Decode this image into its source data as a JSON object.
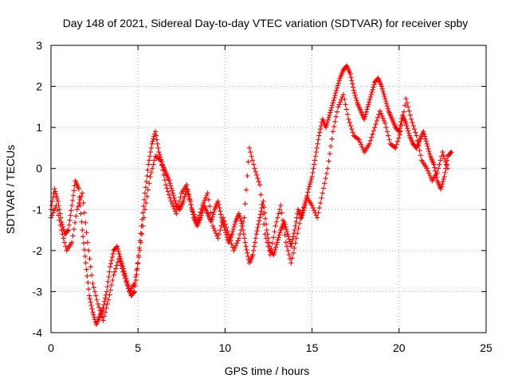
{
  "chart_data": {
    "type": "scatter",
    "title": "Day 148 of 2021, Sidereal Day-to-day VTEC variation (SDTVAR) for receiver spby",
    "xlabel": "GPS time / hours",
    "ylabel": "SDTVAR / TECUs",
    "xlim": [
      0,
      25
    ],
    "ylim": [
      -4,
      3
    ],
    "xticks": [
      "0",
      "5",
      "10",
      "15",
      "20",
      "25"
    ],
    "yticks": [
      "-4",
      "-3",
      "-2",
      "-1",
      "0",
      "1",
      "2",
      "3"
    ],
    "grid": true,
    "marker": "plus",
    "color": "#ff0000",
    "series": [
      {
        "name": "",
        "x": [
          0.0,
          0.2,
          0.4,
          0.6,
          0.8,
          1.0,
          1.2,
          1.4,
          1.6,
          1.8,
          2.0,
          2.2,
          2.4,
          2.6,
          2.8,
          3.0,
          3.2,
          3.4,
          3.6,
          3.8,
          4.0,
          4.2,
          4.4,
          4.6,
          4.8,
          5.0,
          5.2,
          5.4,
          5.6,
          5.8,
          6.0,
          6.2,
          6.4,
          6.6,
          6.8,
          7.0,
          7.2,
          7.4,
          7.6,
          7.8,
          8.0,
          8.2,
          8.4,
          8.6,
          8.8,
          9.0,
          9.2,
          9.4,
          9.6,
          9.8,
          10.0,
          10.2,
          10.4,
          10.6,
          10.8,
          11.0,
          11.2,
          11.4,
          11.6,
          11.8,
          12.0,
          12.2,
          12.4,
          12.6,
          12.8,
          13.0,
          13.2,
          13.4,
          13.6,
          13.8,
          14.0,
          14.2,
          14.4,
          14.6,
          14.8,
          15.0,
          15.2,
          15.4,
          15.6,
          15.8,
          16.0,
          16.2,
          16.4,
          16.6,
          16.8,
          17.0,
          17.2,
          17.4,
          17.6,
          17.8,
          18.0,
          18.2,
          18.4,
          18.6,
          18.8,
          19.0,
          19.2,
          19.4,
          19.6,
          19.8,
          20.0,
          20.2,
          20.4,
          20.6,
          20.8,
          21.0,
          21.2,
          21.4,
          21.6,
          21.8,
          22.0,
          22.2,
          22.4,
          22.6,
          22.8,
          23.0
        ],
        "y": [
          -1.0,
          -0.5,
          -0.8,
          -1.3,
          -1.6,
          -1.5,
          -0.9,
          -0.3,
          -0.5,
          -1.5,
          -2.3,
          -3.1,
          -3.5,
          -3.8,
          -3.6,
          -3.4,
          -3.0,
          -2.4,
          -2.0,
          -1.9,
          -2.2,
          -2.5,
          -2.8,
          -3.1,
          -3.0,
          -2.3,
          -1.4,
          -0.6,
          0.1,
          0.6,
          0.9,
          0.4,
          0.1,
          -0.1,
          -0.3,
          -0.6,
          -0.9,
          -1.0,
          -0.8,
          -0.5,
          -0.8,
          -1.2,
          -1.4,
          -1.2,
          -0.9,
          -1.1,
          -1.3,
          -1.0,
          -0.8,
          -1.2,
          -1.5,
          -1.8,
          -1.6,
          -1.3,
          -1.1,
          -1.4,
          -1.9,
          -2.3,
          -2.1,
          -1.6,
          -1.2,
          -0.8,
          -1.5,
          -2.0,
          -2.1,
          -1.8,
          -1.5,
          -1.3,
          -1.6,
          -1.9,
          -1.5,
          -1.0,
          -1.2,
          -0.9,
          -0.5,
          -0.2,
          0.3,
          0.8,
          1.2,
          1.0,
          1.3,
          1.6,
          1.9,
          2.2,
          2.4,
          2.5,
          2.3,
          1.9,
          1.6,
          1.4,
          1.2,
          1.5,
          1.8,
          2.1,
          2.2,
          2.0,
          1.7,
          1.4,
          1.2,
          1.0,
          0.9,
          1.3,
          1.1,
          0.8,
          0.6,
          0.5,
          0.7,
          0.9,
          0.6,
          0.3,
          0.1,
          -0.3,
          -0.5,
          -0.2,
          0.3,
          0.4
        ]
      },
      {
        "name": "",
        "x": [
          0.0,
          0.3,
          0.6,
          0.9,
          1.2,
          1.5,
          1.8,
          2.1,
          2.4,
          2.7,
          3.0,
          3.3,
          3.6,
          3.9,
          4.2,
          4.5,
          4.8,
          5.1,
          5.4,
          5.7,
          6.0,
          6.3,
          6.6,
          6.9,
          7.2,
          7.5,
          7.8,
          8.1,
          8.4,
          8.7,
          9.0,
          9.3,
          9.6,
          9.9,
          10.2,
          10.5,
          10.8,
          11.1,
          11.4,
          11.7,
          12.0,
          12.3,
          12.6,
          12.9,
          13.2,
          13.5,
          13.8,
          14.1,
          14.4,
          14.7,
          15.0,
          15.3,
          15.6,
          15.9,
          16.2,
          16.5,
          16.8,
          17.1,
          17.4,
          17.7,
          18.0,
          18.3,
          18.6,
          18.9,
          19.2,
          19.5,
          19.8,
          20.1,
          20.4,
          20.7,
          21.0,
          21.3,
          21.6,
          21.9,
          22.2,
          22.5,
          22.8
        ],
        "y": [
          -1.2,
          -0.9,
          -1.5,
          -2.0,
          -1.8,
          -1.0,
          -0.6,
          -1.8,
          -2.8,
          -3.3,
          -3.7,
          -3.2,
          -2.6,
          -2.2,
          -2.6,
          -3.0,
          -2.8,
          -2.0,
          -1.0,
          -0.2,
          0.3,
          0.2,
          -0.4,
          -0.8,
          -1.1,
          -0.6,
          -0.4,
          -1.0,
          -1.3,
          -0.9,
          -0.6,
          -1.4,
          -1.7,
          -1.2,
          -1.6,
          -2.0,
          -1.7,
          -1.2,
          0.5,
          0.0,
          -0.4,
          -1.6,
          -2.1,
          -1.4,
          -0.9,
          -1.8,
          -2.3,
          -1.7,
          -1.1,
          -0.7,
          -0.9,
          -1.2,
          -0.6,
          0.0,
          0.9,
          1.5,
          1.8,
          1.2,
          0.8,
          0.7,
          0.4,
          0.6,
          1.0,
          1.4,
          1.1,
          0.6,
          0.5,
          0.9,
          1.7,
          1.2,
          0.8,
          0.2,
          0.0,
          -0.3,
          -0.1,
          0.4,
          0.0
        ]
      }
    ]
  }
}
